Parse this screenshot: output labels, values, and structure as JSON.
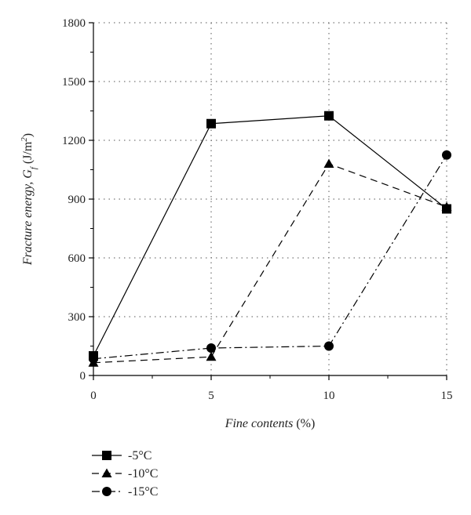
{
  "chart_data": {
    "type": "line",
    "title": "",
    "xlabel_main": "Fine contents",
    "xlabel_unit": " (%)",
    "ylabel_main": "Fracture energy, G",
    "ylabel_sub": "f",
    "ylabel_unit_open": " (J/m",
    "ylabel_unit_sup": "2",
    "ylabel_unit_close": ")",
    "x": [
      0,
      5,
      10,
      15
    ],
    "xlim": [
      0,
      15
    ],
    "ylim": [
      0,
      1800
    ],
    "x_ticks": [
      "0",
      "5",
      "10",
      "15"
    ],
    "y_ticks": [
      "0",
      "300",
      "600",
      "900",
      "1200",
      "1500",
      "1800"
    ],
    "grid": "dotted",
    "legend_position": "bottom-left",
    "series": [
      {
        "name": "-5°C",
        "marker": "square",
        "dash": "solid",
        "values": [
          100,
          1285,
          1325,
          850
        ]
      },
      {
        "name": "-10°C",
        "marker": "triangle",
        "dash": "dashed",
        "values": [
          65,
          95,
          1080,
          860
        ]
      },
      {
        "name": "-15°C",
        "marker": "circle",
        "dash": "dashdot",
        "values": [
          85,
          140,
          150,
          1125
        ]
      }
    ]
  }
}
